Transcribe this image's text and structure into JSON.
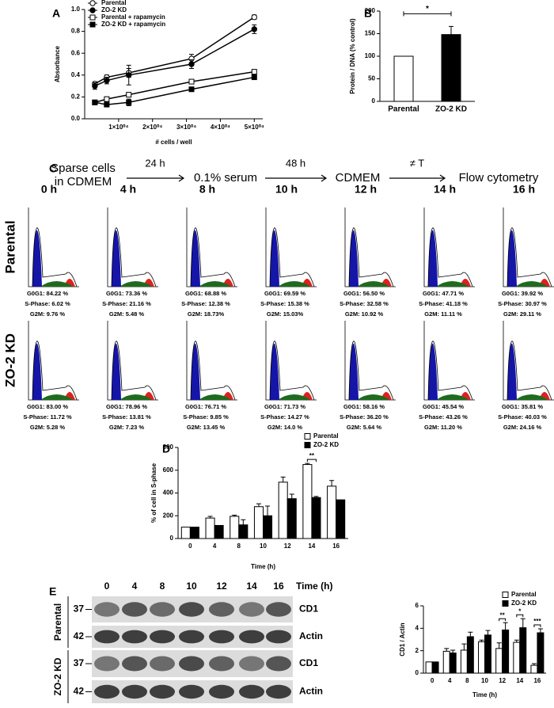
{
  "chart_data": [
    {
      "type": "line",
      "panel": "A",
      "y_label": "Absorbance",
      "x_label": "# cells / well",
      "x": [
        3000,
        6500,
        13000,
        31500,
        50000
      ],
      "xlim": [
        0,
        52500
      ],
      "xticks": [
        {
          "value": 10000,
          "label": "1×10⁰⁴"
        },
        {
          "value": 20000,
          "label": "2×10⁰⁴"
        },
        {
          "value": 30000,
          "label": "3×10⁰⁴"
        },
        {
          "value": 40000,
          "label": "4×10⁰⁴"
        },
        {
          "value": 50000,
          "label": "5×10⁰⁴"
        }
      ],
      "ylim": [
        0,
        1
      ],
      "yticks": [
        {
          "value": 0,
          "label": "0.0"
        },
        0.2,
        0.4,
        0.6,
        0.8,
        {
          "value": 1,
          "label": "1.0"
        }
      ],
      "legend": "upper left",
      "series": [
        {
          "name": "Parental",
          "color": "#000000",
          "marker": "circle",
          "marker_fill": "#ffffff",
          "values": [
            0.32,
            0.38,
            0.42,
            0.55,
            0.93
          ],
          "errors": [
            0.02,
            0.02,
            0.04,
            0.04,
            0.02
          ]
        },
        {
          "name": "ZO-2 KD",
          "color": "#000000",
          "marker": "circle",
          "marker_fill": "#000000",
          "values": [
            0.3,
            0.35,
            0.4,
            0.5,
            0.82
          ],
          "errors": [
            0.03,
            0.03,
            0.09,
            0.04,
            0.04
          ]
        },
        {
          "name": "Parental + rapamycin",
          "color": "#000000",
          "marker": "square",
          "marker_fill": "#ffffff",
          "values": [
            0.15,
            0.18,
            0.22,
            0.34,
            0.43
          ],
          "errors": [
            0.01,
            0.02,
            0.02,
            0.01,
            0.02
          ]
        },
        {
          "name": "ZO-2 KD + rapamycin",
          "color": "#000000",
          "marker": "square",
          "marker_fill": "#000000",
          "values": [
            0.15,
            0.13,
            0.15,
            0.27,
            0.38
          ],
          "errors": [
            0.01,
            0.02,
            0.03,
            0.01,
            0.01
          ]
        }
      ]
    },
    {
      "type": "bar",
      "panel": "B",
      "y_label": "Protein / DNA (% control)",
      "categories": [
        "Parental",
        "ZO-2 KD"
      ],
      "values": [
        100,
        148
      ],
      "errors": [
        null,
        18
      ],
      "colors": [
        "#ffffff",
        "#000000"
      ],
      "significance": "*",
      "ylim": [
        0,
        200
      ],
      "yticks": [
        0,
        50,
        100,
        150,
        200
      ]
    },
    {
      "type": "bar",
      "panel": "D",
      "y_label": "% of cell in S-phase",
      "x_label": "Time (h)",
      "categories": [
        "0",
        "4",
        "8",
        "10",
        "12",
        "14",
        "16"
      ],
      "ylim": [
        0,
        800
      ],
      "yticks": [
        0,
        200,
        400,
        600,
        800
      ],
      "legend": "upper right",
      "significance": [
        null,
        null,
        null,
        null,
        null,
        "**",
        null
      ],
      "series": [
        {
          "name": "Parental",
          "color": "#ffffff",
          "values": [
            100,
            180,
            195,
            280,
            495,
            650,
            460
          ],
          "errors": [
            null,
            15,
            10,
            25,
            45,
            10,
            50
          ]
        },
        {
          "name": "ZO-2 KD",
          "color": "#000000",
          "values": [
            100,
            115,
            120,
            200,
            350,
            360,
            340
          ],
          "errors": [
            null,
            null,
            45,
            85,
            40,
            10,
            null
          ]
        }
      ]
    },
    {
      "type": "bar",
      "y_label": "CD1 / Actin",
      "x_label": "Time (h)",
      "categories": [
        "0",
        "4",
        "8",
        "10",
        "12",
        "14",
        "16"
      ],
      "ylim": [
        0,
        6
      ],
      "yticks": [
        0,
        2,
        4,
        6
      ],
      "legend": "upper right",
      "significance": [
        null,
        null,
        null,
        null,
        "**",
        "*",
        "***"
      ],
      "series": [
        {
          "name": "Parental",
          "color": "#ffffff",
          "values": [
            1.0,
            1.95,
            2.05,
            2.8,
            2.2,
            2.75,
            0.7
          ],
          "errors": [
            null,
            0.25,
            0.55,
            0.15,
            0.5,
            0.2,
            0.15
          ]
        },
        {
          "name": "ZO-2 KD",
          "color": "#000000",
          "values": [
            1.0,
            1.8,
            3.25,
            3.4,
            3.85,
            4.05,
            3.6
          ],
          "errors": [
            null,
            0.25,
            0.4,
            0.4,
            0.65,
            0.8,
            0.35
          ]
        }
      ]
    }
  ],
  "timeline": {
    "panel": "C",
    "steps": [
      [
        "Sparse cells",
        "in CDMEM"
      ],
      [
        "0.1% serum"
      ],
      [
        "CDMEM"
      ],
      [
        "Flow cytometry"
      ]
    ],
    "arrows": [
      "24 h",
      "48 h",
      "≠ T"
    ]
  },
  "flow_cytometry": {
    "times": [
      "0 h",
      "4 h",
      "8 h",
      "10 h",
      "12 h",
      "14 h",
      "16 h"
    ],
    "rows": [
      {
        "label": "Parental",
        "cells": [
          [
            "G0G1:  84.22 %",
            "S-Phase: 6.02 %",
            "G2M: 9.76 %"
          ],
          [
            "G0G1:  73.36 %",
            "S-Phase: 21.16 %",
            "G2M: 5.48 %"
          ],
          [
            "G0G1:  68.88 %",
            "S-Phase: 12.38 %",
            "G2M: 18.73%"
          ],
          [
            "G0G1:  69.59 %",
            "S-Phase: 15.38 %",
            "G2M: 15.03%"
          ],
          [
            "G0G1:  56.50 %",
            "S-Phase: 32.58 %",
            "G2M: 10.92 %"
          ],
          [
            "G0G1:  47.71 %",
            "S-Phase: 41.18 %",
            "G2M: 11.11 %"
          ],
          [
            "G0G1:  39.92 %",
            "S-Phase: 30.97 %",
            "G2M: 29.11 %"
          ]
        ]
      },
      {
        "label": "ZO-2 KD",
        "cells": [
          [
            "G0G1:  83.00 %",
            "S-Phase: 11.72 %",
            "G2M: 5.28 %"
          ],
          [
            "G0G1:  78.96 %",
            "S-Phase: 13.81 %",
            "G2M: 7.23 %"
          ],
          [
            "G0G1:  76.71 %",
            "S-Phase: 9.85 %",
            "G2M: 13.45 %"
          ],
          [
            "G0G1:  71.73 %",
            "S-Phase: 14.27 %",
            "G2M: 14.0 %"
          ],
          [
            "G0G1:  58.16 %",
            "S-Phase: 36.20 %",
            "G2M: 5.64 %"
          ],
          [
            "G0G1:  45.54 %",
            "S-Phase: 43.26 %",
            "G2M: 11.20 %"
          ],
          [
            "G0G1:  35.81 %",
            "S-Phase: 40.03 %",
            "G2M: 24.16 %"
          ]
        ]
      }
    ]
  },
  "western_blot": {
    "panel": "E",
    "times": [
      "0",
      "4",
      "8",
      "10",
      "12",
      "14",
      "16"
    ],
    "time_label": "Time (h)",
    "rows": [
      {
        "label": "Parental",
        "bands": [
          {
            "marker": "37",
            "name": "CD1"
          },
          {
            "marker": "42",
            "name": "Actin"
          }
        ]
      },
      {
        "label": "ZO-2 KD",
        "bands": [
          {
            "marker": "37",
            "name": "CD1"
          },
          {
            "marker": "42",
            "name": "Actin"
          }
        ]
      }
    ]
  }
}
